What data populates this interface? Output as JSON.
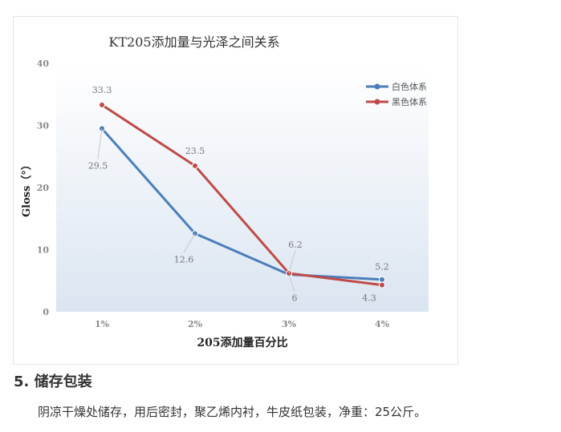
{
  "chart_data": {
    "type": "line",
    "title": "KT205添加量与光泽之间关系",
    "xlabel": "205添加量百分比",
    "ylabel": "Gloss（°）",
    "categories": [
      "1%",
      "2%",
      "3%",
      "4%"
    ],
    "ylim": [
      0,
      40
    ],
    "yticks": [
      "0",
      "10",
      "20",
      "30",
      "40"
    ],
    "grid": false,
    "legend_position": "top-right",
    "series": [
      {
        "name": "白色体系",
        "color": "#4a7ebb",
        "values": [
          29.5,
          12.6,
          6,
          5.2
        ],
        "labels": [
          "29.5",
          "12.6",
          "6",
          "5.2"
        ]
      },
      {
        "name": "黑色体系",
        "color": "#be4b48",
        "values": [
          33.3,
          23.5,
          6.2,
          4.3
        ],
        "labels": [
          "33.3",
          "23.5",
          "6.2",
          "4.3"
        ]
      }
    ]
  },
  "section": {
    "heading": "5. 储存包装",
    "body": "阴凉干燥处储存，用后密封，聚乙烯内衬，牛皮纸包装，净重：25公斤。"
  }
}
